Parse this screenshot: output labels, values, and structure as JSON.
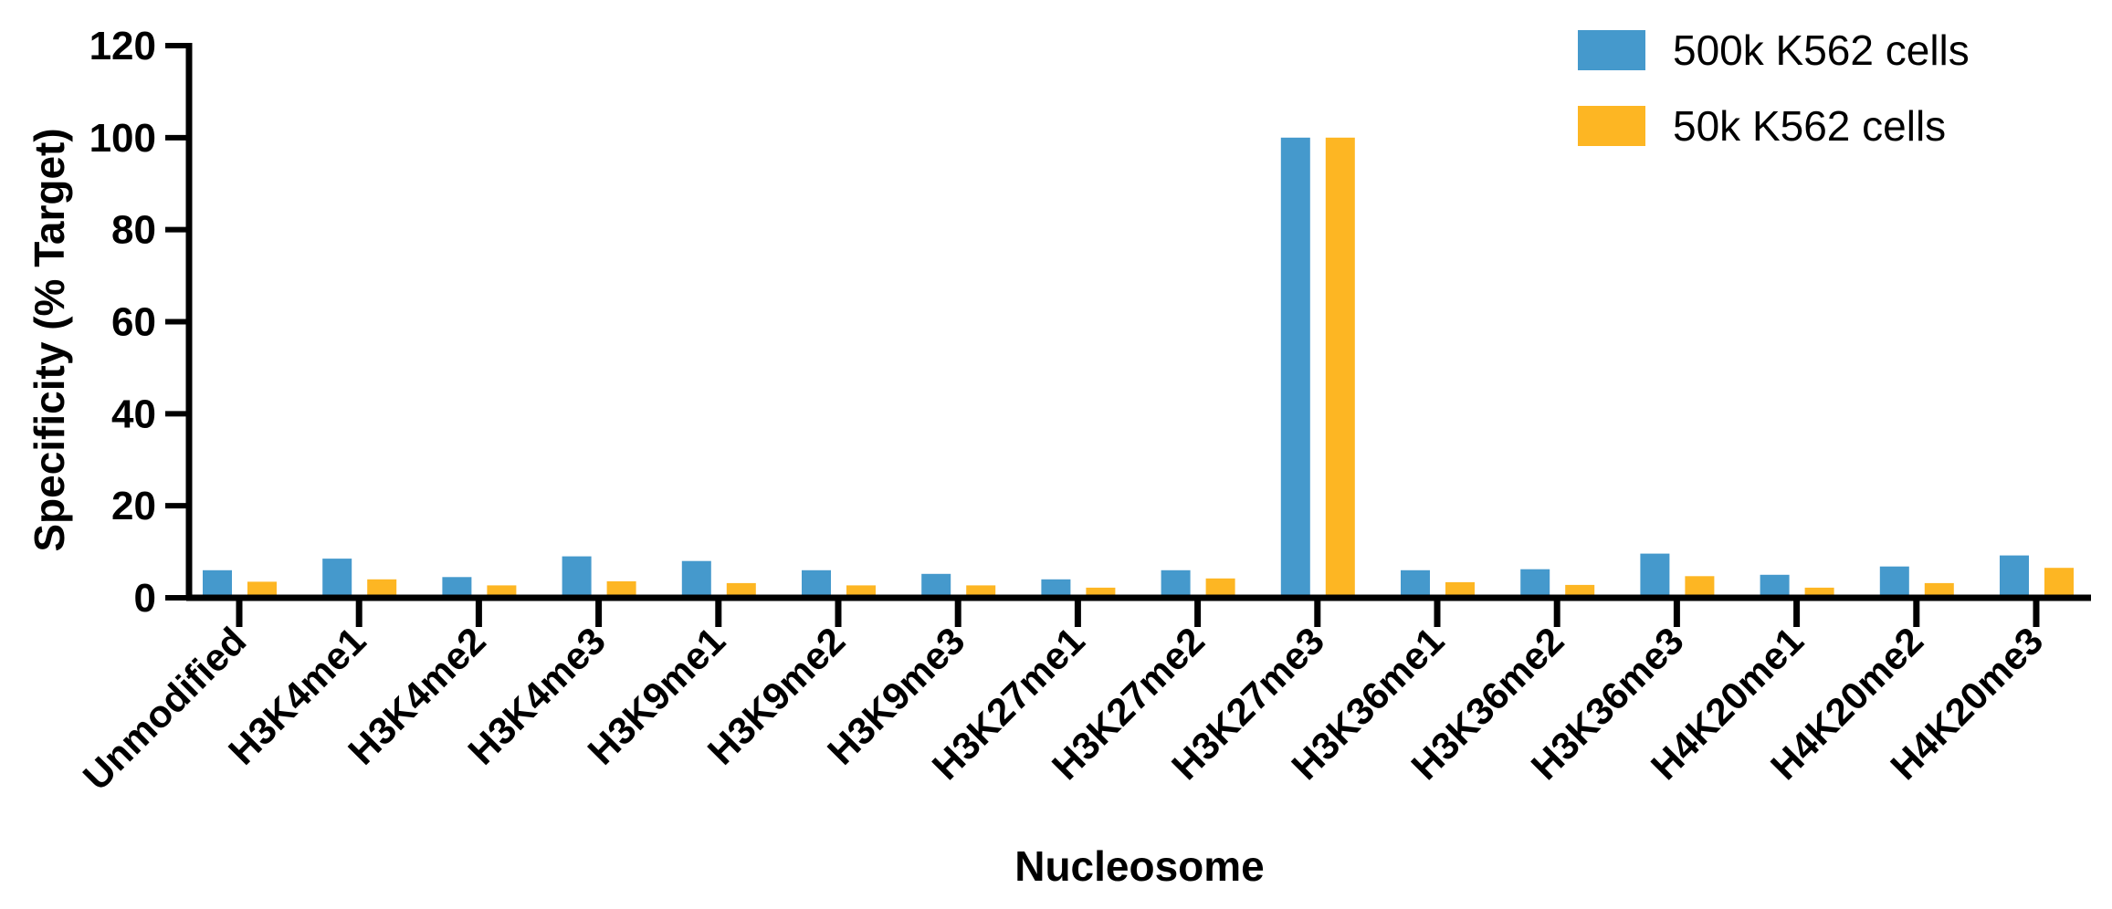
{
  "chart_data": {
    "type": "bar",
    "xlabel": "Nucleosome",
    "ylabel": "Specificity (% Target)",
    "ylim": [
      0,
      120
    ],
    "yticks": [
      0,
      20,
      40,
      60,
      80,
      100,
      120
    ],
    "grid": false,
    "legend_position": "top-right",
    "categories": [
      "Unmodified",
      "H3K4me1",
      "H3K4me2",
      "H3K4me3",
      "H3K9me1",
      "H3K9me2",
      "H3K9me3",
      "H3K27me1",
      "H3K27me2",
      "H3K27me3",
      "H3K36me1",
      "H3K36me2",
      "H3K36me3",
      "H4K20me1",
      "H4K20me2",
      "H4K20me3"
    ],
    "series": [
      {
        "name": "500k K562 cells",
        "color": "#4599CC",
        "values": [
          6.0,
          8.5,
          4.5,
          9.0,
          8.0,
          6.0,
          5.2,
          4.0,
          6.0,
          100,
          6.0,
          6.2,
          9.6,
          5.0,
          6.8,
          9.2
        ]
      },
      {
        "name": "50k K562 cells",
        "color": "#FDB623",
        "values": [
          3.5,
          4.0,
          2.7,
          3.6,
          3.2,
          2.7,
          2.7,
          2.2,
          4.2,
          100,
          3.4,
          2.8,
          4.7,
          2.2,
          3.2,
          6.5
        ]
      }
    ]
  }
}
